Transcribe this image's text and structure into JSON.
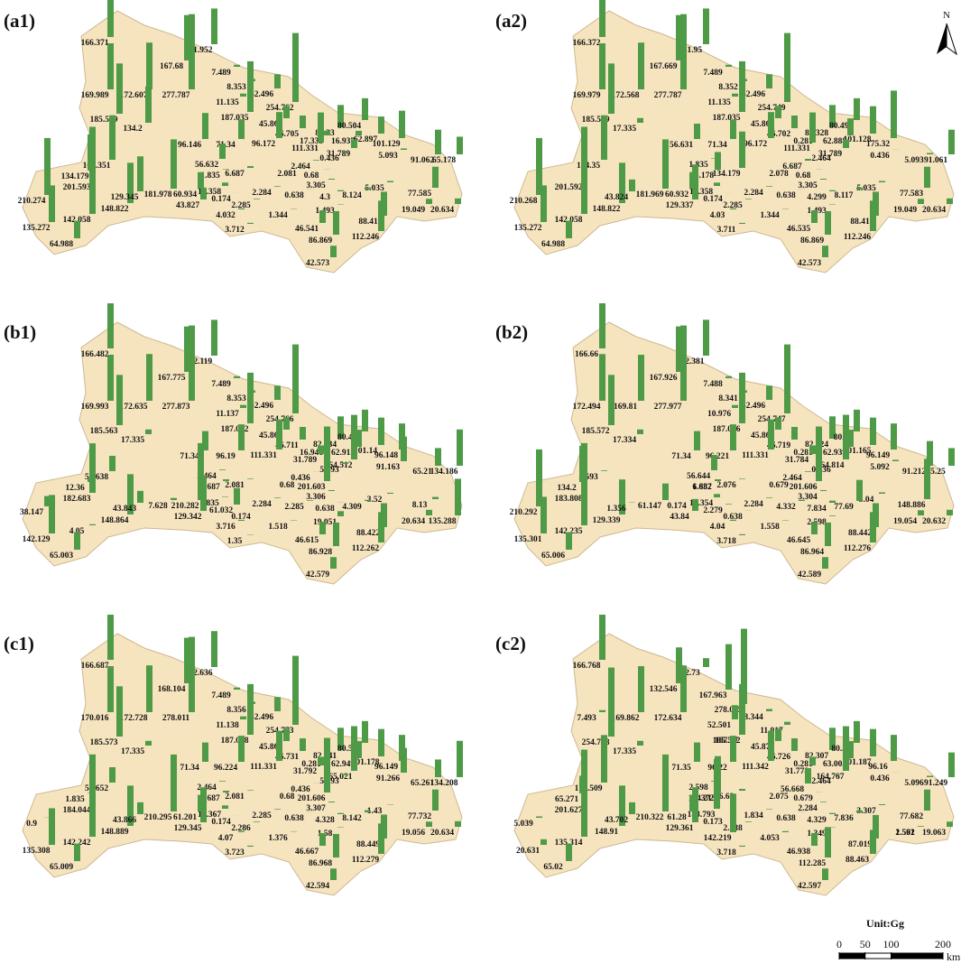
{
  "panels": [
    {
      "label": "(a1)",
      "values": [
        166.371,
        131.952,
        167.68,
        7.489,
        169.989,
        172.607,
        277.787,
        8.353,
        52.496,
        11.135,
        254.762,
        185.529,
        187.035,
        45.868,
        46.705,
        82.33,
        80.504,
        134.2,
        17.335,
        16.937,
        62.897,
        101.129,
        96.146,
        71.34,
        96.172,
        111.331,
        31.789,
        164.351,
        56.632,
        2.464,
        0.436,
        5.093,
        91.062,
        65.178,
        134.179,
        1.835,
        6.687,
        2.081,
        0.68,
        201.593,
        12.358,
        2.284,
        3.305,
        5.035,
        210.274,
        181.978,
        60.934,
        0.174,
        2.285,
        0.638,
        4.3,
        8.124,
        77.585,
        148.822,
        43.827,
        129.345,
        1.344,
        1.493,
        19.049,
        20.634,
        135.272,
        142.058,
        4.032,
        3.712,
        46.541,
        88.41,
        112.246,
        86.869,
        64.988,
        42.573
      ]
    },
    {
      "label": "(a2)",
      "values": [
        166.372,
        131.95,
        167.669,
        7.489,
        169.979,
        172.568,
        277.787,
        8.352,
        52.496,
        11.135,
        254.749,
        185.529,
        187.035,
        45.868,
        46.702,
        82.328,
        80.496,
        17.335,
        0.281,
        62.888,
        101.128,
        175.32,
        56.631,
        71.34,
        96.172,
        111.331,
        31.789,
        164.35,
        1.835,
        6.687,
        2.464,
        0.436,
        5.093,
        91.061,
        65.178,
        134.179,
        2.078,
        0.68,
        201.592,
        12.358,
        2.284,
        3.305,
        5.035,
        210.268,
        181.969,
        60.932,
        0.174,
        2.285,
        0.638,
        4.299,
        8.117,
        77.583,
        148.822,
        129.337,
        43.824,
        1.344,
        1.493,
        19.049,
        20.634,
        135.272,
        142.058,
        4.03,
        3.711,
        46.535,
        88.41,
        112.246,
        86.869,
        64.988,
        42.573
      ]
    },
    {
      "label": "(b1)",
      "values": [
        166.482,
        132.119,
        167.775,
        7.489,
        169.993,
        172.635,
        277.873,
        8.353,
        52.496,
        11.137,
        254.766,
        185.563,
        187.042,
        45.869,
        46.711,
        82.334,
        80.499,
        17.335,
        16.941,
        62.913,
        101.14,
        96.148,
        71.34,
        96.19,
        111.331,
        31.789,
        164.512,
        56.638,
        2.464,
        0.436,
        5.093,
        91.163,
        65.21,
        134.186,
        12.36,
        6.687,
        2.081,
        0.68,
        201.603,
        182.683,
        1.835,
        2.284,
        3.306,
        3.52,
        38.147,
        7.628,
        210.282,
        61.032,
        0.174,
        2.285,
        0.638,
        4.309,
        8.13,
        148.864,
        129.342,
        43.843,
        1.518,
        19.051,
        20.634,
        135.288,
        142.129,
        4.05,
        3.716,
        1.35,
        46.615,
        88.422,
        112.262,
        86.928,
        65.003,
        42.579
      ]
    },
    {
      "label": "(b2)",
      "values": [
        166.66,
        132.381,
        167.926,
        7.488,
        172.494,
        169.81,
        277.977,
        8.341,
        52.496,
        10.976,
        254.747,
        185.572,
        187.056,
        45.867,
        46.719,
        82.324,
        80.5,
        17.334,
        0.281,
        62.939,
        101.165,
        96.149,
        71.34,
        96.221,
        111.331,
        31.784,
        164.814,
        2.593,
        56.644,
        2.464,
        0.436,
        5.092,
        91.212,
        65.25,
        134.2,
        1.832,
        6.687,
        2.076,
        0.679,
        201.606,
        183.808,
        12.354,
        2.284,
        3.304,
        5.04,
        210.292,
        61.147,
        0.174,
        2.279,
        0.638,
        4.332,
        7.834,
        77.69,
        148.886,
        129.339,
        43.84,
        1.356,
        1.558,
        2.598,
        19.054,
        20.632,
        135.301,
        142.235,
        4.04,
        3.718,
        46.645,
        88.442,
        112.276,
        86.964,
        65.006,
        42.589
      ]
    },
    {
      "label": "(c1)",
      "values": [
        166.687,
        132.636,
        168.104,
        7.489,
        170.016,
        172.728,
        278.011,
        8.356,
        52.496,
        11.138,
        254.773,
        185.573,
        187.058,
        45.869,
        46.731,
        82.341,
        80.505,
        17.335,
        0.281,
        62.949,
        101.178,
        96.149,
        71.34,
        96.224,
        111.331,
        31.792,
        165.021,
        56.652,
        2.464,
        0.436,
        5.093,
        91.266,
        65.261,
        134.208,
        1.835,
        6.687,
        2.081,
        0.68,
        201.606,
        184.044,
        12.367,
        2.285,
        3.307,
        1.43,
        0.9,
        210.295,
        61.201,
        0.174,
        2.286,
        0.638,
        4.328,
        8.142,
        77.732,
        148.889,
        129.345,
        43.866,
        1.376,
        1.58,
        19.056,
        20.634,
        135.308,
        142.242,
        4.07,
        3.723,
        46.667,
        88.449,
        112.279,
        86.968,
        65.009,
        42.594
      ]
    },
    {
      "label": "(c2)",
      "values": [
        166.768,
        32.73,
        132.546,
        167.963,
        7.493,
        169.862,
        172.634,
        278.005,
        8.344,
        52.501,
        11.017,
        254.778,
        185.592,
        187.07,
        45.876,
        46.726,
        82.307,
        80.51,
        17.335,
        0.281,
        63.005,
        101.187,
        96.16,
        71.35,
        96.22,
        111.342,
        31.778,
        164.767,
        175.509,
        2.598,
        56.668,
        2.464,
        0.436,
        5.096,
        91.249,
        65.271,
        134.213,
        12.372,
        6.69,
        2.075,
        0.679,
        201.627,
        183.793,
        1.834,
        2.284,
        3.307,
        5.039,
        210.322,
        61.28,
        0.173,
        2.288,
        0.638,
        4.329,
        7.836,
        77.682,
        148.91,
        129.361,
        43.702,
        4.053,
        1.349,
        1.561,
        2.592,
        19.063,
        20.631,
        135.314,
        142.219,
        3.718,
        46.938,
        87.019,
        88.463,
        112.285,
        65.02,
        42.597
      ]
    }
  ],
  "north": "N",
  "unit": "Unit:Gg",
  "scale": {
    "ticks": [
      0,
      50,
      100,
      200
    ],
    "unit": "km"
  }
}
